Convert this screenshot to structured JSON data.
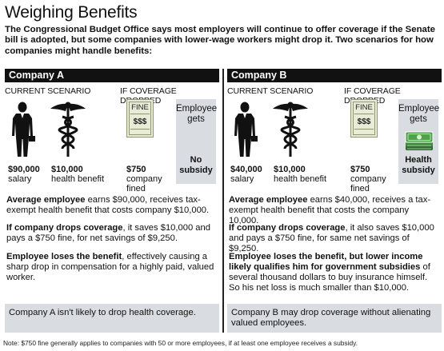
{
  "title": "Weighing Benefits",
  "intro": "The Congressional Budget Office says most employers will continue to offer coverage if the Senate bill is adopted, but some companies with lower-wage workers might drop it. Two scenarios for how companies might handle benefits:",
  "labels": {
    "current": "CURRENT SCENARIO",
    "dropped": "IF COVERAGE DROPPED",
    "employee_gets_1": "Employee",
    "employee_gets_2": "gets",
    "fine_tag": "FINE",
    "fine_dollars": "$$$"
  },
  "company_a": {
    "name": "Company A",
    "salary_amt": "$90,000",
    "salary_lbl": "salary",
    "health_amt": "$10,000",
    "health_lbl": "health benefit",
    "fine_amt": "$750",
    "fine_lbl_1": "company",
    "fine_lbl_2": "fined",
    "gets_1": "No",
    "gets_2": "subsidy",
    "p1_bold": "Average employee",
    "p1_rest": " earns $90,000, receives tax-exempt health benefit that costs company $10,000.",
    "p2_bold": "If company drops coverage",
    "p2_rest": ", it saves $10,000 and pays a $750 fine, for net savings of $9,250.",
    "p3_bold": "Employee loses the benefit",
    "p3_rest": ", effectively causing a sharp drop in compensation for a highly paid, valued worker.",
    "conclusion": "Company A isn't likely to drop health coverage."
  },
  "company_b": {
    "name": "Company B",
    "salary_amt": "$40,000",
    "salary_lbl": "salary",
    "health_amt": "$10,000",
    "health_lbl": "health benefit",
    "fine_amt": "$750",
    "fine_lbl_1": "company",
    "fine_lbl_2": "fined",
    "gets_1": "Health",
    "gets_2": "subsidy",
    "p1_bold": "Average employee",
    "p1_rest": " earns $40,000, receives a tax-exempt health benefit that costs the company 10,000.",
    "p2_bold": "If company drops coverage",
    "p2_rest": ", it also saves $10,000 and pays a $750 fine, for same net savings of $9,250.",
    "p3_bold": "Employee loses the benefit, but lower income likely qualifies him for government subsidies",
    "p3_rest": " of several thousand dollars to buy insurance himself. So his net loss is much smaller than $10,000.",
    "conclusion": "Company B may drop coverage without alienating valued employees."
  },
  "note": "Note: $750 fine generally applies to companies with 50 or more employees, if at least one employee receives a subsidy.",
  "colors": {
    "header_bg": "#111111",
    "panel_gray": "#d9dde2",
    "fine_green": "#e8ecd6",
    "money_green": "#3c8a3a"
  },
  "icons": [
    "businessman-icon",
    "caduceus-icon",
    "fine-ticket-icon",
    "money-stack-icon"
  ]
}
